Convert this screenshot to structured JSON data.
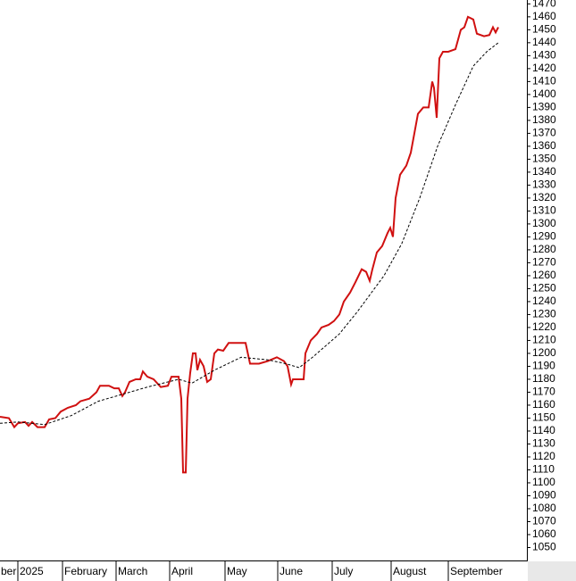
{
  "chart_data": {
    "type": "line",
    "xlim": [
      0,
      590
    ],
    "ylim": [
      1040,
      1473
    ],
    "xticks": [
      {
        "value": -1,
        "label": "ber"
      },
      {
        "value": 20,
        "label": "2025"
      },
      {
        "value": 70,
        "label": "February"
      },
      {
        "value": 130,
        "label": "March"
      },
      {
        "value": 190,
        "label": "April"
      },
      {
        "value": 252,
        "label": "May"
      },
      {
        "value": 311,
        "label": "June"
      },
      {
        "value": 372,
        "label": "July"
      },
      {
        "value": 438,
        "label": "August"
      },
      {
        "value": 502,
        "label": "September"
      }
    ],
    "yticks": [
      1050,
      1060,
      1070,
      1080,
      1090,
      1100,
      1110,
      1120,
      1130,
      1140,
      1150,
      1160,
      1170,
      1180,
      1190,
      1200,
      1210,
      1220,
      1230,
      1240,
      1250,
      1260,
      1270,
      1280,
      1290,
      1300,
      1310,
      1320,
      1330,
      1340,
      1350,
      1360,
      1370,
      1380,
      1390,
      1400,
      1410,
      1420,
      1430,
      1440,
      1450,
      1460,
      1470
    ],
    "series": [
      {
        "color": "#d01010",
        "dash": false,
        "x": [
          0,
          10,
          16,
          20,
          28,
          32,
          36,
          42,
          50,
          55,
          62,
          68,
          76,
          85,
          90,
          100,
          108,
          112,
          122,
          128,
          133,
          137,
          140,
          145,
          152,
          157,
          160,
          165,
          172,
          180,
          188,
          192,
          200,
          203,
          205,
          208,
          210,
          213,
          216,
          219,
          221,
          224,
          228,
          232,
          236,
          240,
          244,
          250,
          256,
          262,
          275,
          280,
          290,
          300,
          310,
          318,
          322,
          326,
          328,
          335,
          340,
          342,
          348,
          355,
          360,
          368,
          374,
          380,
          385,
          392,
          398,
          405,
          410,
          414,
          417,
          422,
          428,
          434,
          437,
          440,
          443,
          448,
          455,
          460,
          464,
          468,
          474,
          480,
          484,
          486,
          489,
          492,
          496,
          502,
          510,
          516,
          520,
          524,
          530,
          534,
          542,
          548,
          552,
          555,
          558
        ],
        "values": [
          1151,
          1150,
          1143,
          1146,
          1147,
          1144,
          1147,
          1143,
          1143,
          1149,
          1150,
          1155,
          1158,
          1160,
          1163,
          1165,
          1170,
          1175,
          1175,
          1173,
          1173,
          1167,
          1170,
          1178,
          1180,
          1180,
          1186,
          1182,
          1180,
          1174,
          1175,
          1182,
          1182,
          1165,
          1108,
          1108,
          1165,
          1185,
          1200,
          1200,
          1187,
          1195,
          1190,
          1178,
          1180,
          1200,
          1203,
          1202,
          1208,
          1208,
          1208,
          1192,
          1192,
          1194,
          1197,
          1194,
          1190,
          1176,
          1180,
          1180,
          1180,
          1200,
          1210,
          1215,
          1220,
          1222,
          1225,
          1230,
          1240,
          1247,
          1255,
          1265,
          1263,
          1256,
          1265,
          1278,
          1283,
          1293,
          1297,
          1290,
          1320,
          1338,
          1345,
          1355,
          1370,
          1385,
          1390,
          1390,
          1410,
          1405,
          1382,
          1428,
          1433,
          1433,
          1435,
          1450,
          1452,
          1460,
          1458,
          1447,
          1445,
          1446,
          1452,
          1448,
          1452
        ]
      },
      {
        "color": "#000000",
        "dash": true,
        "x": [
          0,
          20,
          50,
          80,
          110,
          135,
          165,
          200,
          215,
          240,
          270,
          300,
          320,
          335,
          350,
          380,
          400,
          430,
          450,
          470,
          490,
          510,
          530,
          545,
          558
        ],
        "values": [
          1146,
          1147,
          1145,
          1152,
          1163,
          1168,
          1174,
          1180,
          1177,
          1187,
          1197,
          1195,
          1192,
          1189,
          1197,
          1215,
          1232,
          1260,
          1285,
          1320,
          1360,
          1392,
          1422,
          1433,
          1440
        ]
      }
    ]
  }
}
